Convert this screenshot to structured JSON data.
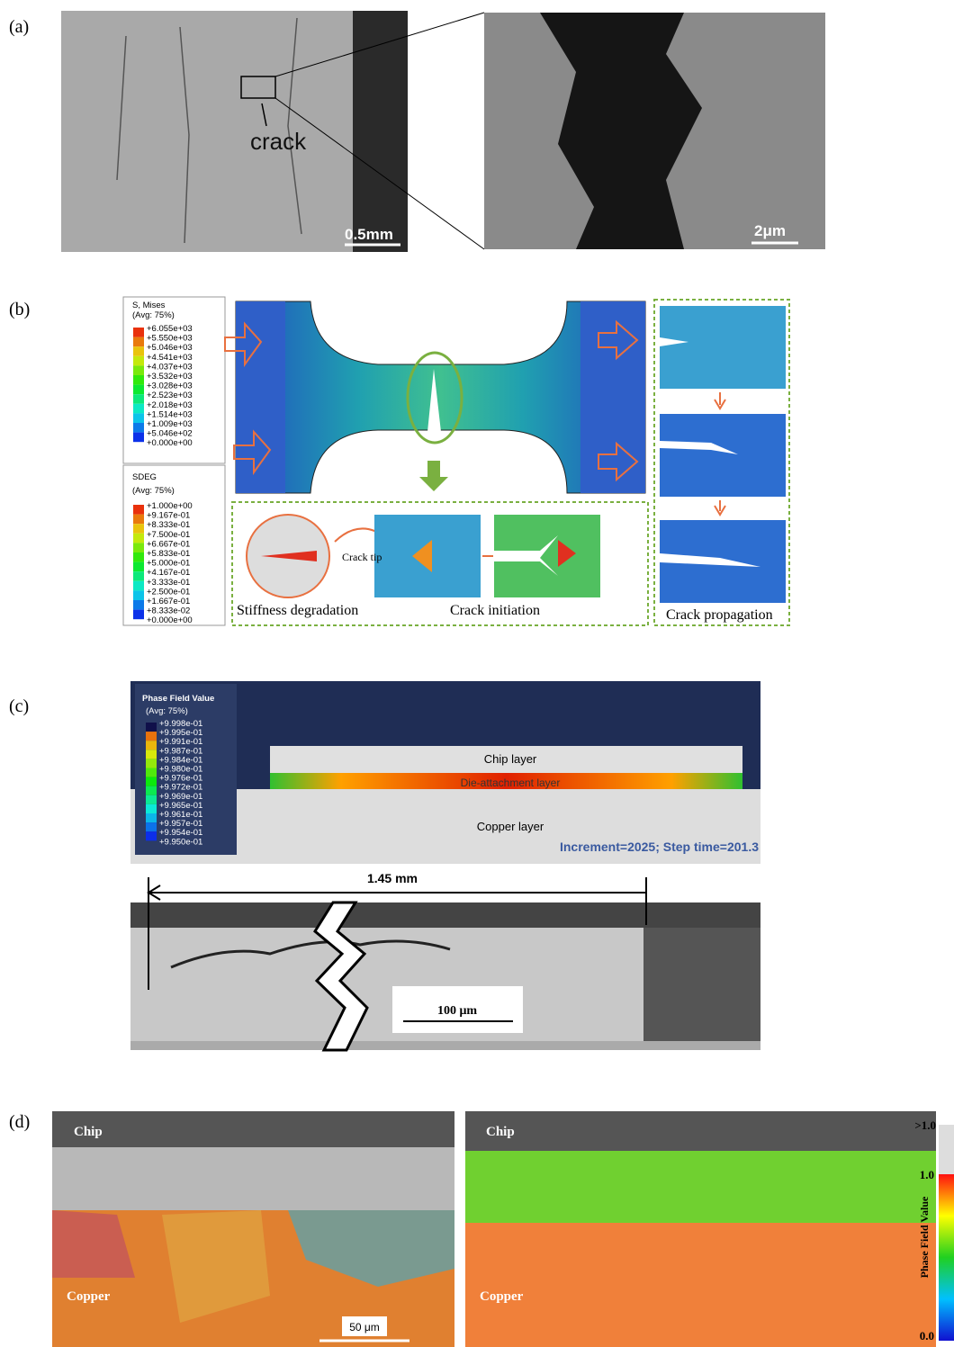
{
  "panels": {
    "a": {
      "label": "(a)",
      "crack": "crack",
      "scale_left": "0.5mm",
      "scale_right": "2μm"
    },
    "b": {
      "label": "(b)",
      "legend_mises": {
        "title": "S, Mises",
        "avg": "(Avg: 75%)",
        "values": [
          "+6.055e+03",
          "+5.550e+03",
          "+5.046e+03",
          "+4.541e+03",
          "+4.037e+03",
          "+3.532e+03",
          "+3.028e+03",
          "+2.523e+03",
          "+2.018e+03",
          "+1.514e+03",
          "+1.009e+03",
          "+5.046e+02",
          "+0.000e+00"
        ]
      },
      "legend_sdeg": {
        "title": "SDEG",
        "avg": "(Avg: 75%)",
        "values": [
          "+1.000e+00",
          "+9.167e-01",
          "+8.333e-01",
          "+7.500e-01",
          "+6.667e-01",
          "+5.833e-01",
          "+5.000e-01",
          "+4.167e-01",
          "+3.333e-01",
          "+2.500e-01",
          "+1.667e-01",
          "+8.333e-02",
          "+0.000e+00"
        ]
      },
      "crack_tip": "Crack tip",
      "stiffness": "Stiffness degradation",
      "initiation": "Crack initiation",
      "propagation": "Crack propagation"
    },
    "c": {
      "label": "(c)",
      "legend": {
        "title": "Phase Field Value",
        "avg": "(Avg: 75%)",
        "values": [
          "+9.998e-01",
          "+9.995e-01",
          "+9.991e-01",
          "+9.987e-01",
          "+9.984e-01",
          "+9.980e-01",
          "+9.976e-01",
          "+9.972e-01",
          "+9.969e-01",
          "+9.965e-01",
          "+9.961e-01",
          "+9.957e-01",
          "+9.954e-01",
          "+9.950e-01"
        ]
      },
      "chip": "Chip layer",
      "die": "Die-attachment layer",
      "copper": "Copper layer",
      "increment": "Increment=2025; Step time=201.3",
      "length": "1.45 mm",
      "scale": "100 μm"
    },
    "d": {
      "label": "(d)",
      "chip_left": "Chip",
      "copper_left": "Copper",
      "scale": "50 μm",
      "chip_right": "Chip",
      "copper_right": "Copper",
      "colorbar": {
        "over": ">1.0",
        "top": "1.0",
        "title": "Phase Field Value",
        "bottom": "0.0"
      }
    }
  }
}
